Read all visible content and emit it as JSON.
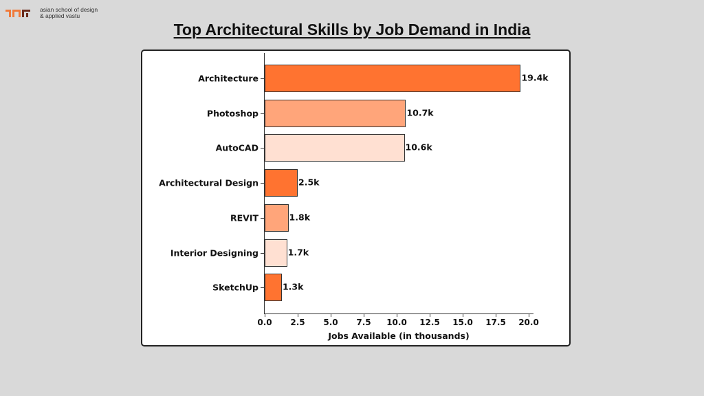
{
  "logo": {
    "line1": "asian school of design",
    "line2": "& applied vastu"
  },
  "page_title": "Top Architectural Skills by Job Demand in India",
  "chart_data": {
    "type": "bar",
    "orientation": "horizontal",
    "title": "Top Architectural Skills by Job Demand in India",
    "xlabel": "Jobs Available (in thousands)",
    "ylabel": "",
    "xlim": [
      0,
      20.5
    ],
    "grid": false,
    "categories": [
      "Architecture",
      "Photoshop",
      "AutoCAD",
      "Architectural Design",
      "REVIT",
      "Interior Designing",
      "SketchUp"
    ],
    "values": [
      19.4,
      10.7,
      10.6,
      2.5,
      1.8,
      1.7,
      1.3
    ],
    "data_labels": [
      "19.4k",
      "10.7k",
      "10.6k",
      "2.5k",
      "1.8k",
      "1.7k",
      "1.3k"
    ],
    "bar_colors": [
      "#ff7330",
      "#ffa57a",
      "#ffe0d2",
      "#ff7330",
      "#ffa57a",
      "#ffe0d2",
      "#ff7330"
    ],
    "x_ticks": [
      "0.0",
      "2.5",
      "5.0",
      "7.5",
      "10.0",
      "12.5",
      "15.0",
      "17.5",
      "20.0"
    ]
  }
}
